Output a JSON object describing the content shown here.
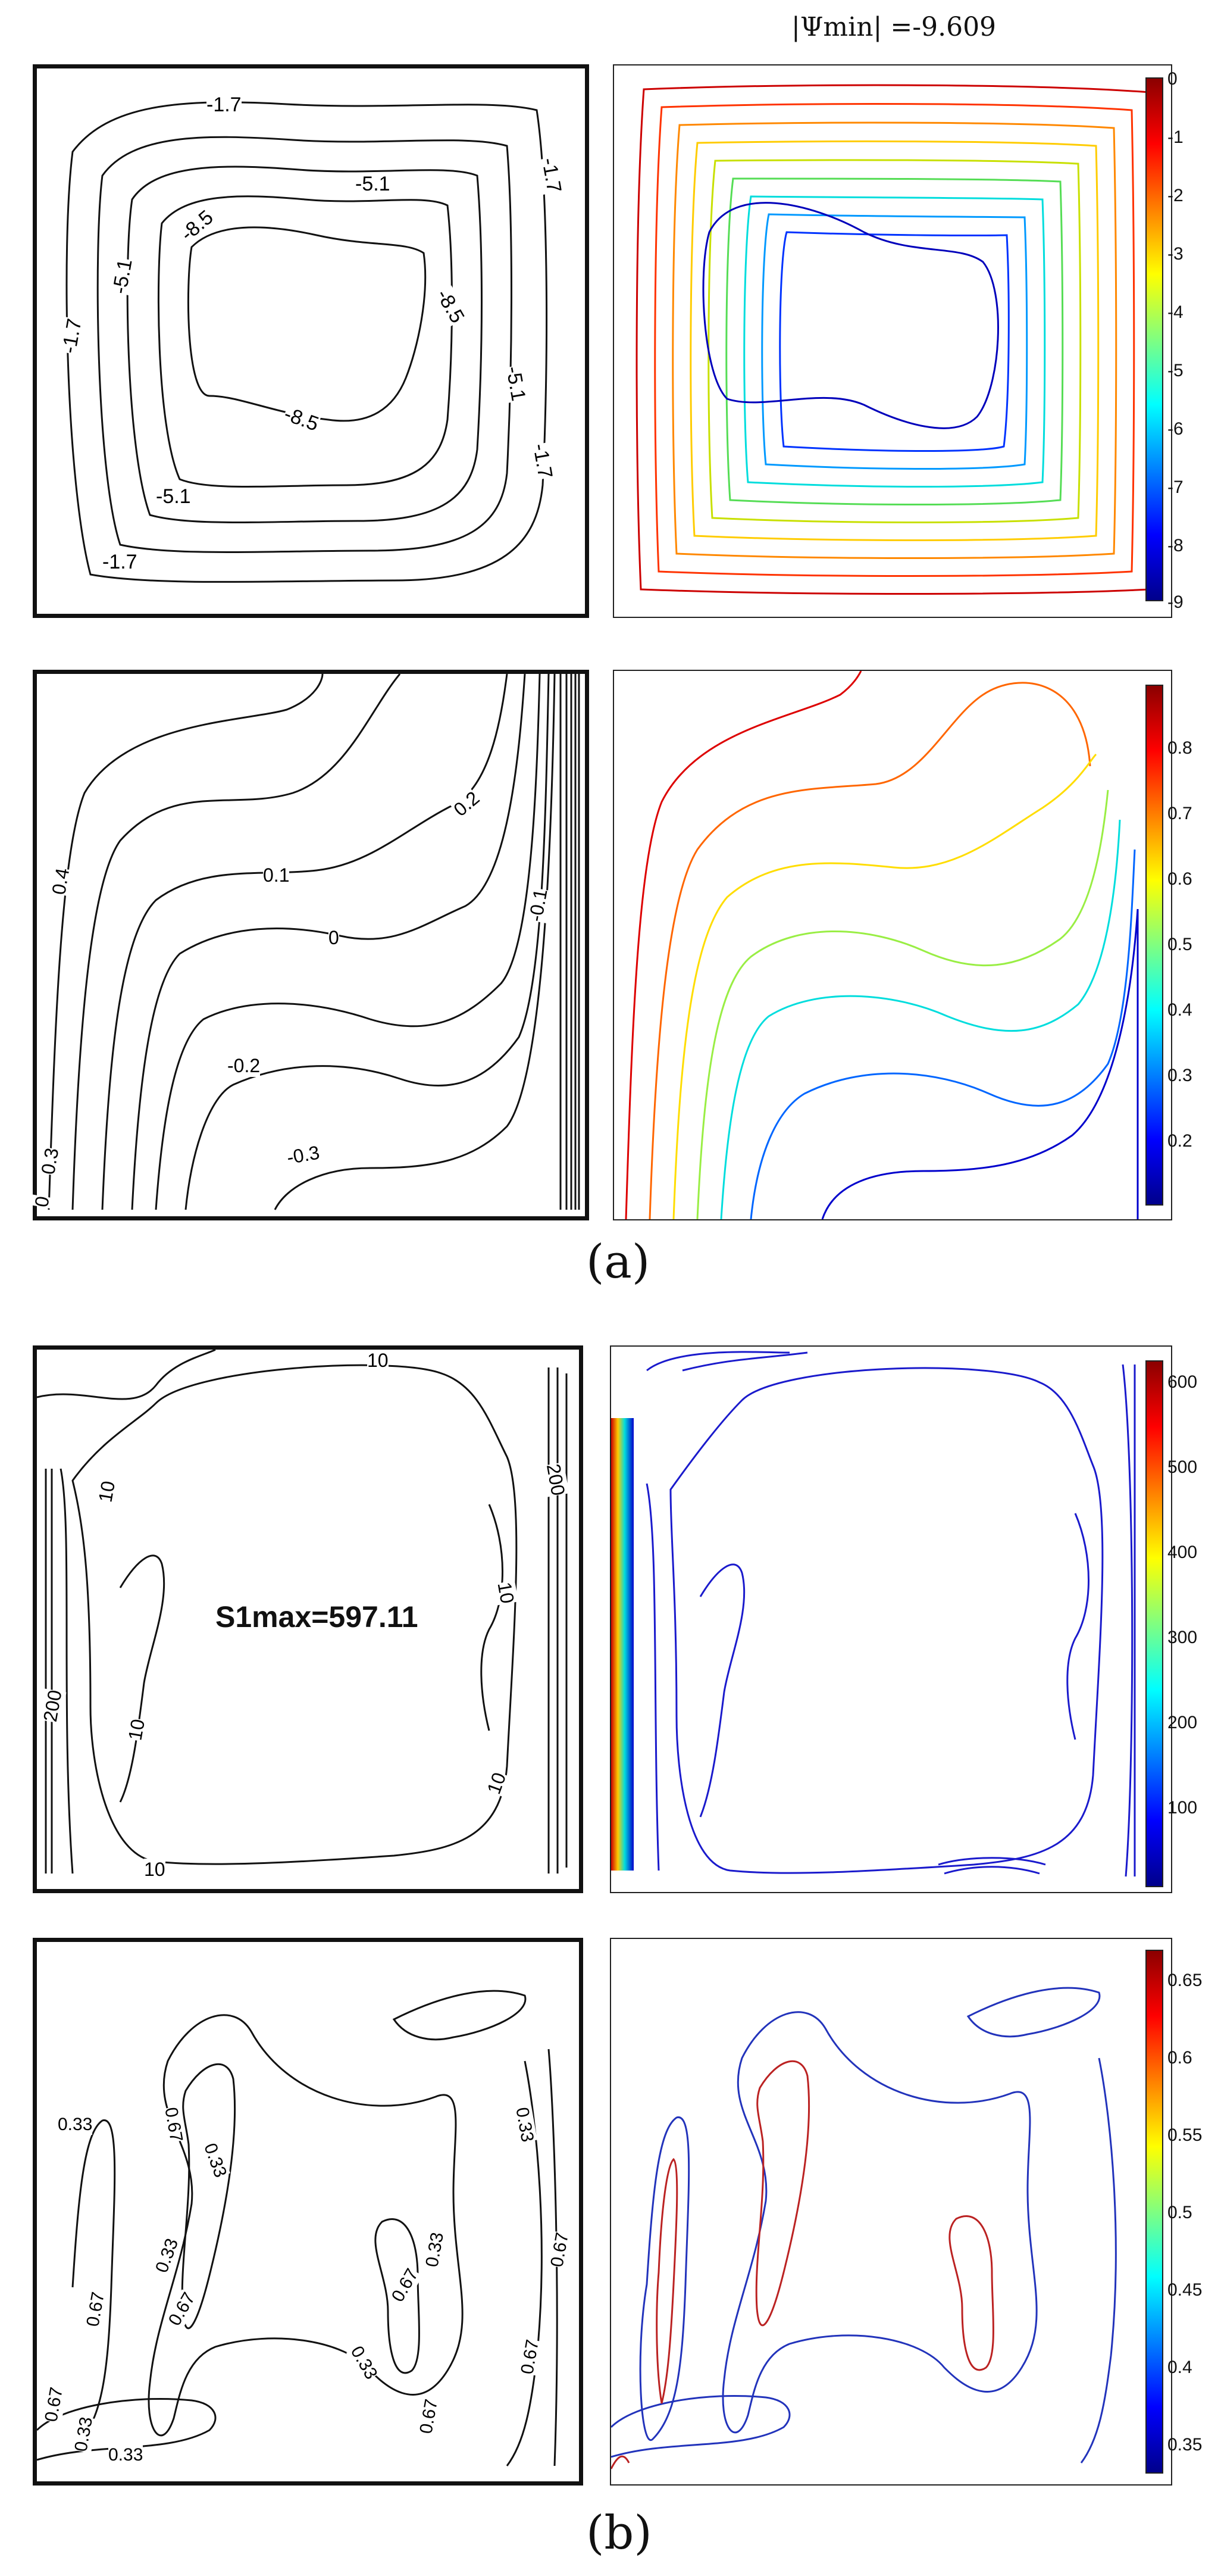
{
  "top_label": "|Ψmin| =-9.609",
  "figure_labels": {
    "a": "(a)",
    "b": "(b)"
  },
  "s1max_label": "S1max=597.11",
  "colorbars": {
    "psi": {
      "ticks": [
        "0",
        "-1",
        "-2",
        "-3",
        "-4",
        "-5",
        "-6",
        "-7",
        "-8",
        "-9"
      ],
      "colors": [
        "#8b0000",
        "#ff0000",
        "#ff8000",
        "#ffff00",
        "#80ff80",
        "#00ffff",
        "#0080ff",
        "#0000ff",
        "#00008b"
      ]
    },
    "theta": {
      "ticks": [
        "0.8",
        "0.7",
        "0.6",
        "0.5",
        "0.4",
        "0.3",
        "0.2"
      ],
      "colors": [
        "#8b0000",
        "#ff0000",
        "#ff8000",
        "#ffff00",
        "#80ff80",
        "#00ffff",
        "#0080ff",
        "#0000ff",
        "#00008b"
      ]
    },
    "s": {
      "ticks": [
        "600",
        "500",
        "400",
        "300",
        "200",
        "100"
      ],
      "colors": [
        "#8b0000",
        "#ff0000",
        "#ff8000",
        "#ffff00",
        "#80ff80",
        "#00ffff",
        "#0080ff",
        "#0000ff",
        "#00008b"
      ]
    },
    "be": {
      "ticks": [
        "0.65",
        "0.6",
        "0.55",
        "0.5",
        "0.45",
        "0.4",
        "0.35"
      ],
      "colors": [
        "#8b0000",
        "#ff0000",
        "#ff8000",
        "#ffff00",
        "#80ff80",
        "#00ffff",
        "#0080ff",
        "#0000ff",
        "#00008b"
      ]
    }
  },
  "contour_labels": {
    "psi_bw": [
      "-1.7",
      "-5.1",
      "-8.5",
      "-8.5",
      "-8.5",
      "-5.1",
      "-5.1",
      "-1.7",
      "-1.7",
      "-1.7",
      "-5.1",
      "-1.7"
    ],
    "theta_bw": [
      "0.4",
      "0.2",
      "0.1",
      "0",
      "-0.1",
      "-0.2",
      "-0.3",
      "0.3",
      "0"
    ],
    "s_bw": [
      "10",
      "10",
      "10",
      "10",
      "10",
      "10",
      "200",
      "200"
    ],
    "be_bw": [
      "0.33",
      "0.67",
      "0.33",
      "0.33",
      "0.33",
      "0.67",
      "0.67",
      "0.33",
      "0.67",
      "0.67",
      "0.67",
      "0.33",
      "0.67",
      "0.33",
      "0.33",
      "0.67"
    ]
  },
  "chart_data": [
    {
      "type": "heatmap",
      "panel": "a-streamfunction-reference",
      "levels": [
        -1.7,
        -5.1,
        -8.5
      ]
    },
    {
      "type": "heatmap",
      "panel": "a-streamfunction",
      "colorbar_range": [
        -9,
        0
      ],
      "psi_min_abs": -9.609
    },
    {
      "type": "heatmap",
      "panel": "a-temperature-reference",
      "levels": [
        0.4,
        0.3,
        0.2,
        0.1,
        0,
        -0.1,
        -0.2,
        -0.3
      ]
    },
    {
      "type": "heatmap",
      "panel": "a-temperature",
      "colorbar_range": [
        0.1,
        0.9
      ]
    },
    {
      "type": "heatmap",
      "panel": "b-entropy-reference",
      "levels": [
        10,
        200
      ],
      "s1max": 597.11
    },
    {
      "type": "heatmap",
      "panel": "b-entropy",
      "colorbar_range": [
        0,
        620
      ]
    },
    {
      "type": "heatmap",
      "panel": "b-bejan-reference",
      "levels": [
        0.33,
        0.67
      ]
    },
    {
      "type": "heatmap",
      "panel": "b-bejan",
      "colorbar_range": [
        0.33,
        0.67
      ]
    }
  ]
}
